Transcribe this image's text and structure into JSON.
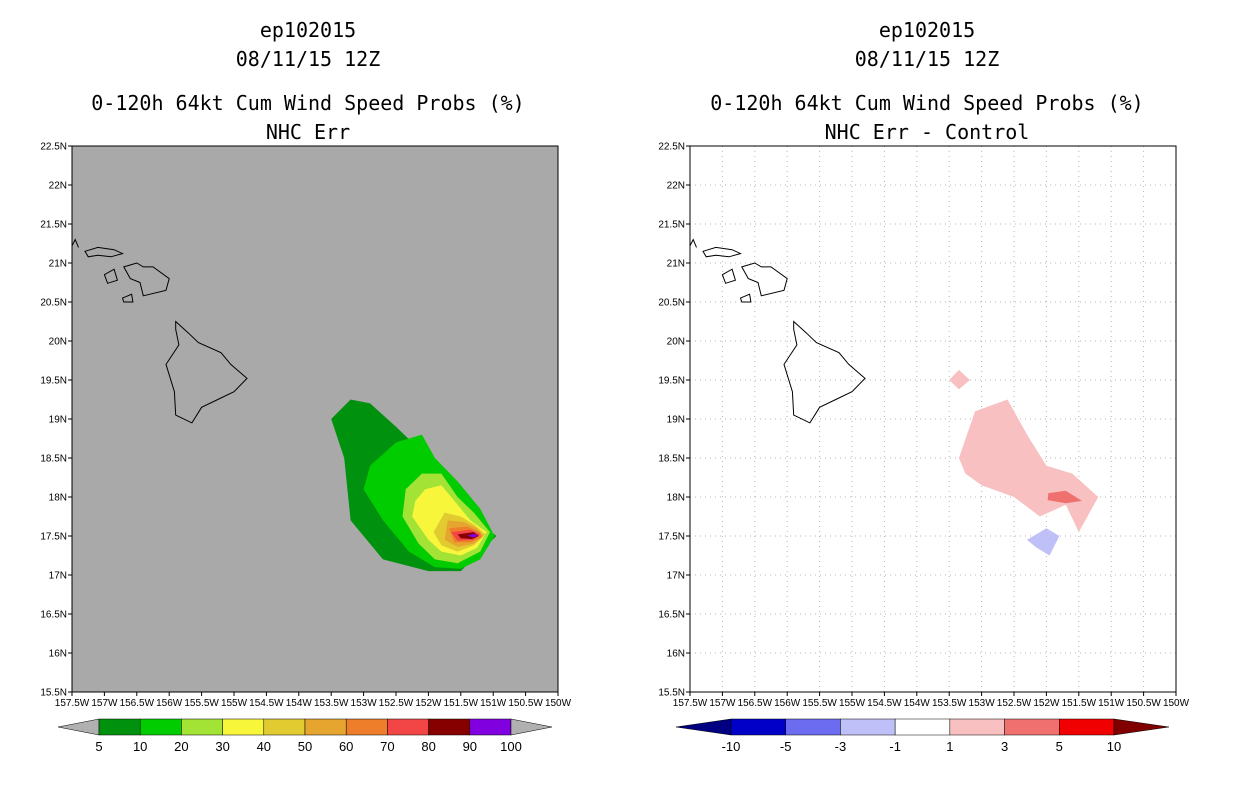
{
  "panels": [
    {
      "id": "left",
      "storm": "ep102015",
      "datetime": "08/11/15 12Z",
      "product": "0-120h 64kt Cum Wind Speed Probs (%)",
      "subtitle": "NHC Err",
      "background": "#a9a9a9",
      "grid": false,
      "colorbar": {
        "colors": [
          "#00920e",
          "#00cc00",
          "#a2e335",
          "#f7f63b",
          "#e2cb31",
          "#e6a52e",
          "#ee7e2a",
          "#f24545",
          "#870000",
          "#8000e0"
        ],
        "labels": [
          "5",
          "10",
          "20",
          "30",
          "40",
          "50",
          "60",
          "70",
          "80",
          "90",
          "100"
        ],
        "end_color": "#b0b0b0"
      },
      "contours": [
        {
          "level": "5-10",
          "color": "#00920e",
          "lonlat": [
            [
              -153.5,
              19.0
            ],
            [
              -153.2,
              19.25
            ],
            [
              -152.9,
              19.2
            ],
            [
              -152.5,
              18.9
            ],
            [
              -152.0,
              18.5
            ],
            [
              -151.5,
              18.1
            ],
            [
              -151.25,
              17.7
            ],
            [
              -150.95,
              17.5
            ],
            [
              -151.2,
              17.3
            ],
            [
              -151.5,
              17.05
            ],
            [
              -152.0,
              17.05
            ],
            [
              -152.7,
              17.2
            ],
            [
              -153.2,
              17.7
            ],
            [
              -153.3,
              18.5
            ]
          ]
        },
        {
          "level": "10-20",
          "color": "#00cc00",
          "lonlat": [
            [
              -152.9,
              18.4
            ],
            [
              -152.5,
              18.7
            ],
            [
              -152.1,
              18.8
            ],
            [
              -151.9,
              18.5
            ],
            [
              -151.55,
              18.2
            ],
            [
              -151.2,
              17.85
            ],
            [
              -150.98,
              17.5
            ],
            [
              -151.2,
              17.2
            ],
            [
              -151.5,
              17.08
            ],
            [
              -151.9,
              17.1
            ],
            [
              -152.3,
              17.3
            ],
            [
              -152.7,
              17.7
            ],
            [
              -153.0,
              18.1
            ]
          ]
        },
        {
          "level": "20-30",
          "color": "#a2e335",
          "lonlat": [
            [
              -152.35,
              18.1
            ],
            [
              -152.1,
              18.3
            ],
            [
              -151.8,
              18.3
            ],
            [
              -151.55,
              18.0
            ],
            [
              -151.3,
              17.8
            ],
            [
              -151.05,
              17.55
            ],
            [
              -151.2,
              17.3
            ],
            [
              -151.55,
              17.15
            ],
            [
              -151.9,
              17.2
            ],
            [
              -152.15,
              17.4
            ],
            [
              -152.4,
              17.75
            ]
          ]
        },
        {
          "level": "30-40",
          "color": "#f7f63b",
          "lonlat": [
            [
              -152.2,
              17.95
            ],
            [
              -152.05,
              18.1
            ],
            [
              -151.8,
              18.15
            ],
            [
              -151.55,
              17.9
            ],
            [
              -151.35,
              17.7
            ],
            [
              -151.1,
              17.55
            ],
            [
              -151.25,
              17.35
            ],
            [
              -151.5,
              17.25
            ],
            [
              -151.8,
              17.3
            ],
            [
              -152.0,
              17.45
            ],
            [
              -152.25,
              17.75
            ]
          ]
        },
        {
          "level": "40-50",
          "color": "#e2cb31",
          "lonlat": [
            [
              -151.75,
              17.8
            ],
            [
              -151.5,
              17.75
            ],
            [
              -151.3,
              17.65
            ],
            [
              -151.12,
              17.52
            ],
            [
              -151.3,
              17.38
            ],
            [
              -151.55,
              17.3
            ],
            [
              -151.8,
              17.38
            ],
            [
              -151.92,
              17.55
            ]
          ]
        },
        {
          "level": "50-60",
          "color": "#e6a52e",
          "lonlat": [
            [
              -151.7,
              17.7
            ],
            [
              -151.45,
              17.68
            ],
            [
              -151.25,
              17.6
            ],
            [
              -151.15,
              17.5
            ],
            [
              -151.3,
              17.4
            ],
            [
              -151.55,
              17.36
            ],
            [
              -151.75,
              17.45
            ]
          ]
        },
        {
          "level": "60-70",
          "color": "#ee7e2a",
          "lonlat": [
            [
              -151.68,
              17.6
            ],
            [
              -151.4,
              17.62
            ],
            [
              -151.2,
              17.55
            ],
            [
              -151.18,
              17.48
            ],
            [
              -151.35,
              17.42
            ],
            [
              -151.6,
              17.42
            ]
          ]
        },
        {
          "level": "70-80",
          "color": "#f24545",
          "lonlat": [
            [
              -151.65,
              17.55
            ],
            [
              -151.35,
              17.58
            ],
            [
              -151.2,
              17.52
            ],
            [
              -151.3,
              17.45
            ],
            [
              -151.55,
              17.44
            ]
          ]
        },
        {
          "level": "80-90",
          "color": "#870000",
          "lonlat": [
            [
              -151.55,
              17.52
            ],
            [
              -151.3,
              17.55
            ],
            [
              -151.22,
              17.5
            ],
            [
              -151.33,
              17.46
            ],
            [
              -151.5,
              17.47
            ]
          ]
        },
        {
          "level": "90-100",
          "color": "#8000e0",
          "lonlat": [
            [
              -151.4,
              17.51
            ],
            [
              -151.27,
              17.53
            ],
            [
              -151.24,
              17.5
            ],
            [
              -151.32,
              17.48
            ]
          ]
        }
      ]
    },
    {
      "id": "right",
      "storm": "ep102015",
      "datetime": "08/11/15 12Z",
      "product": "0-120h 64kt Cum Wind Speed Probs (%)",
      "subtitle": "NHC Err - Control",
      "background": "#ffffff",
      "grid": true,
      "colorbar": {
        "colors": [
          "#0000c8",
          "#6c6cf0",
          "#c0c0f8",
          "#ffffff",
          "#f8c0c0",
          "#f07070",
          "#f00000"
        ],
        "labels": [
          "-10",
          "-5",
          "-3",
          "-1",
          "1",
          "3",
          "5",
          "10"
        ],
        "left_end_color": "#000080",
        "right_end_color": "#800000"
      },
      "contours": [
        {
          "level": "1-3",
          "color": "#f8c0c0",
          "lonlat": [
            [
              -153.5,
              19.5
            ],
            [
              -153.35,
              19.63
            ],
            [
              -153.18,
              19.5
            ],
            [
              -153.35,
              19.38
            ]
          ]
        },
        {
          "level": "1-3",
          "color": "#f8c0c0",
          "lonlat": [
            [
              -153.35,
              18.5
            ],
            [
              -153.1,
              19.1
            ],
            [
              -152.6,
              19.25
            ],
            [
              -152.3,
              18.8
            ],
            [
              -152.0,
              18.4
            ],
            [
              -151.6,
              18.3
            ],
            [
              -151.2,
              18.0
            ],
            [
              -151.5,
              17.55
            ],
            [
              -151.7,
              17.9
            ],
            [
              -152.1,
              17.75
            ],
            [
              -152.5,
              18.0
            ],
            [
              -153.0,
              18.15
            ],
            [
              -153.25,
              18.3
            ]
          ]
        },
        {
          "level": "3-5",
          "color": "#f07070",
          "lonlat": [
            [
              -151.97,
              18.05
            ],
            [
              -151.7,
              18.08
            ],
            [
              -151.45,
              17.95
            ],
            [
              -151.7,
              17.92
            ],
            [
              -151.98,
              17.96
            ]
          ]
        },
        {
          "level": "-3--1",
          "color": "#c0c0f8",
          "lonlat": [
            [
              -152.3,
              17.45
            ],
            [
              -152.0,
              17.6
            ],
            [
              -151.8,
              17.5
            ],
            [
              -151.95,
              17.25
            ],
            [
              -152.15,
              17.35
            ]
          ]
        }
      ]
    }
  ],
  "axes": {
    "lon_min": -157.5,
    "lon_max": -150.0,
    "lat_min": 15.5,
    "lat_max": 22.5,
    "x_ticks": [
      "157.5W",
      "157W",
      "156.5W",
      "156W",
      "155.5W",
      "155W",
      "154.5W",
      "154W",
      "153.5W",
      "153W",
      "152.5W",
      "152W",
      "151.5W",
      "151W",
      "150.5W",
      "150W"
    ],
    "y_ticks": [
      "15.5N",
      "16N",
      "16.5N",
      "17N",
      "17.5N",
      "18N",
      "18.5N",
      "19N",
      "19.5N",
      "20N",
      "20.5N",
      "21N",
      "21.5N",
      "22N",
      "22.5N"
    ]
  },
  "islands": {
    "hawaii": [
      [
        -155.9,
        20.25
      ],
      [
        -155.7,
        20.1
      ],
      [
        -155.55,
        19.98
      ],
      [
        -155.2,
        19.85
      ],
      [
        -155.05,
        19.7
      ],
      [
        -154.8,
        19.52
      ],
      [
        -155.0,
        19.35
      ],
      [
        -155.25,
        19.25
      ],
      [
        -155.5,
        19.15
      ],
      [
        -155.65,
        18.95
      ],
      [
        -155.9,
        19.05
      ],
      [
        -155.92,
        19.35
      ],
      [
        -156.05,
        19.7
      ],
      [
        -155.85,
        19.95
      ],
      [
        -155.9,
        20.15
      ]
    ],
    "maui": [
      [
        -156.7,
        20.95
      ],
      [
        -156.5,
        21.0
      ],
      [
        -156.4,
        20.95
      ],
      [
        -156.25,
        20.95
      ],
      [
        -156.0,
        20.8
      ],
      [
        -156.05,
        20.65
      ],
      [
        -156.4,
        20.58
      ],
      [
        -156.45,
        20.75
      ],
      [
        -156.6,
        20.8
      ]
    ],
    "molokai": [
      [
        -157.3,
        21.15
      ],
      [
        -157.1,
        21.2
      ],
      [
        -156.85,
        21.17
      ],
      [
        -156.72,
        21.12
      ],
      [
        -156.9,
        21.08
      ],
      [
        -157.1,
        21.1
      ],
      [
        -157.25,
        21.08
      ]
    ],
    "lanai": [
      [
        -157.0,
        20.85
      ],
      [
        -156.85,
        20.92
      ],
      [
        -156.8,
        20.78
      ],
      [
        -156.95,
        20.74
      ]
    ],
    "kahoolawe": [
      [
        -156.72,
        20.55
      ],
      [
        -156.58,
        20.6
      ],
      [
        -156.56,
        20.5
      ],
      [
        -156.7,
        20.5
      ]
    ],
    "oahu_edge": [
      [
        -157.5,
        21.22
      ],
      [
        -157.45,
        21.3
      ],
      [
        -157.4,
        21.2
      ]
    ]
  }
}
